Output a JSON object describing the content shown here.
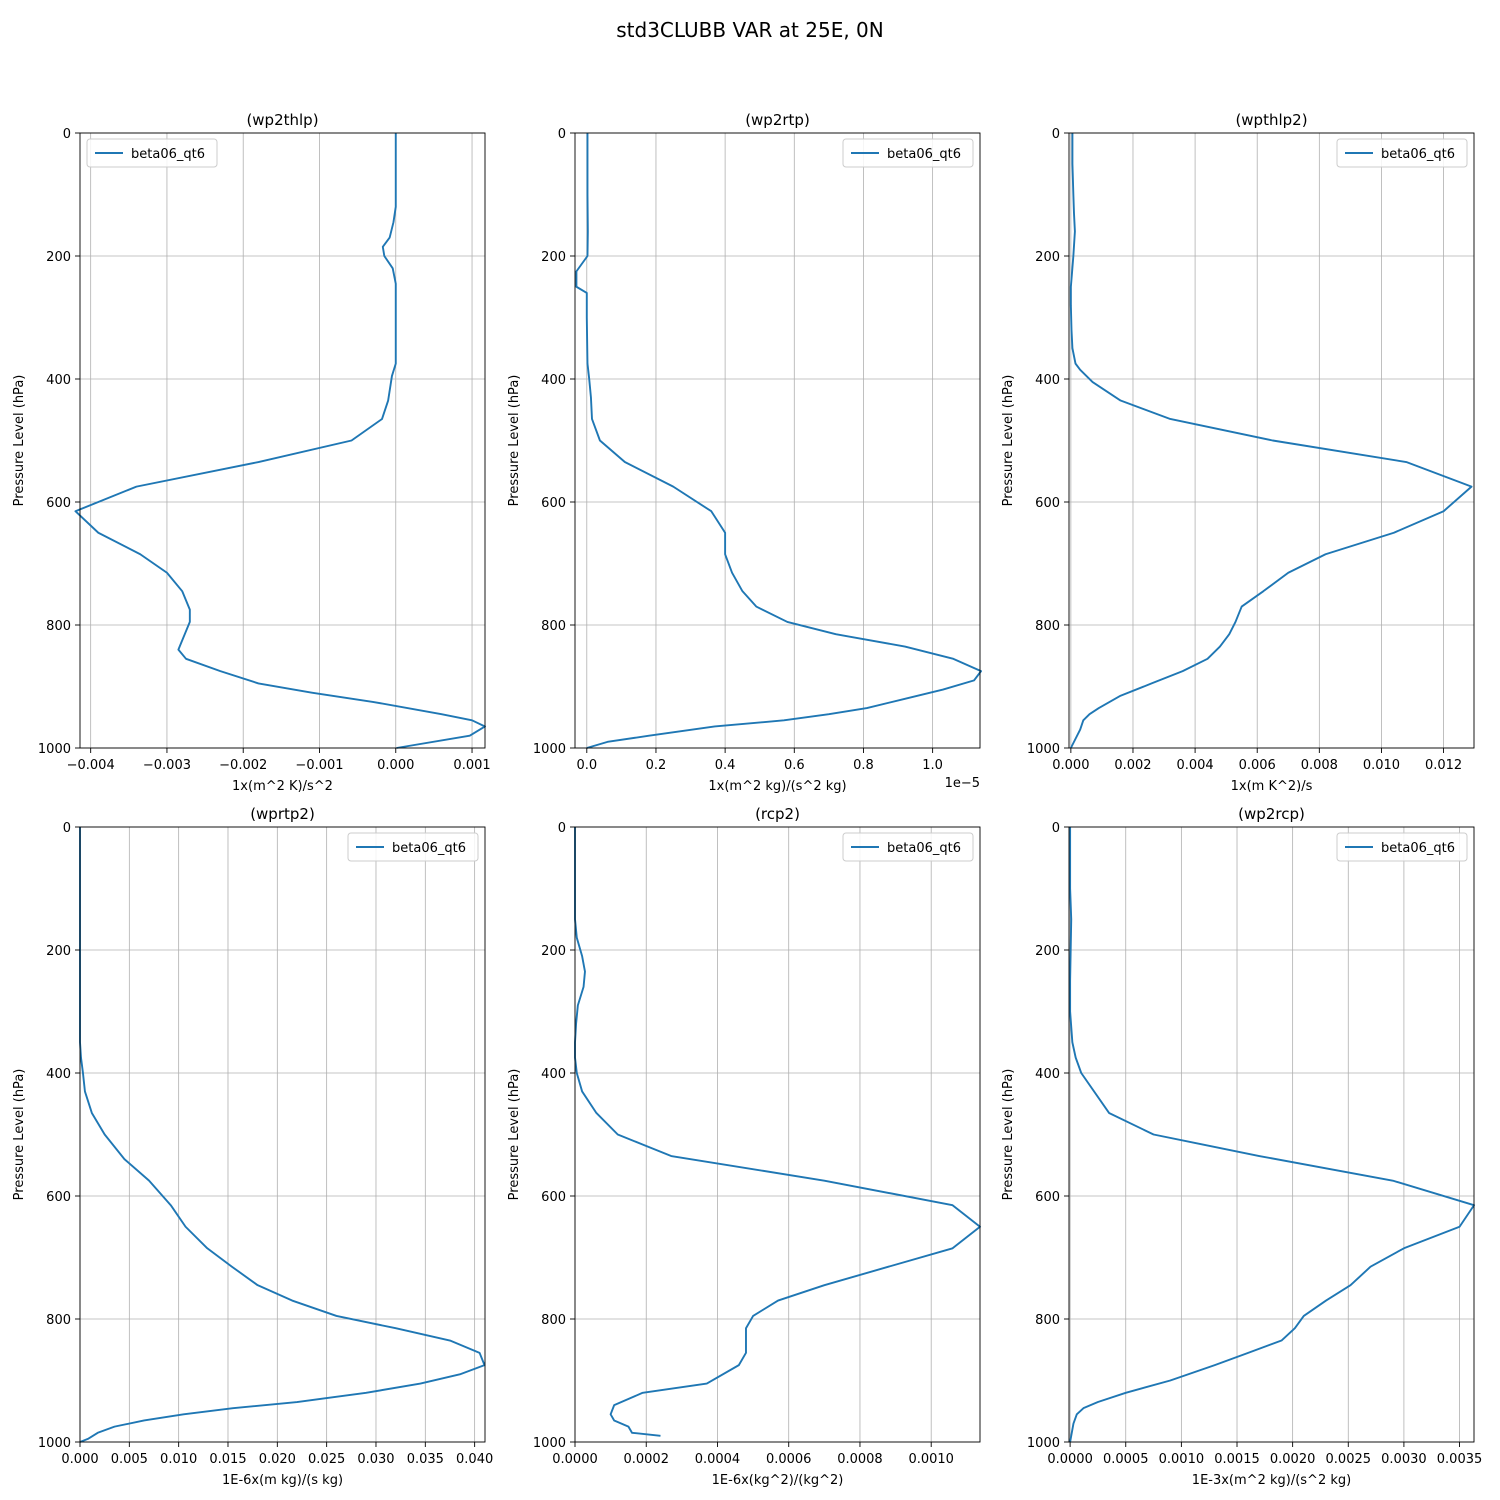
{
  "figure": {
    "title": "std3CLUBB VAR at 25E, 0N"
  },
  "chart_data": [
    {
      "type": "line",
      "title": "(wp2thlp)",
      "xlabel": "1x(m^2 K)/s^2",
      "ylabel": "Pressure Level (hPa)",
      "xlim": [
        -0.00414,
        0.00117
      ],
      "ylim": [
        1000,
        0
      ],
      "xticks": [
        -0.004,
        -0.003,
        -0.002,
        -0.001,
        0.0,
        0.001
      ],
      "xtick_labels": [
        "−0.004",
        "−0.003",
        "−0.002",
        "−0.001",
        "0.000",
        "0.001"
      ],
      "yticks": [
        0,
        200,
        400,
        600,
        800,
        1000
      ],
      "ytick_labels": [
        "0",
        "200",
        "400",
        "600",
        "800",
        "1000"
      ],
      "offset_text": "",
      "grid": true,
      "legend": {
        "position": "upper-left",
        "entries": [
          "beta06_qt6"
        ]
      },
      "series": [
        {
          "name": "beta06_qt6",
          "color": "#1f77b4",
          "x": [
            0.0,
            0.0,
            0.0,
            -3e-05,
            -8e-05,
            -0.00017,
            -0.00015,
            -4e-05,
            0.0,
            0.0,
            0.0,
            0.0,
            -5e-05,
            -0.0001,
            -0.00018,
            -0.00058,
            -0.0018,
            -0.0034,
            -0.0042,
            -0.0039,
            -0.00335,
            -0.003,
            -0.0028,
            -0.0027,
            -0.0027,
            -0.0028,
            -0.00285,
            -0.00275,
            -0.0023,
            -0.0018,
            -0.0011,
            -0.0003,
            0.0006,
            0.001,
            0.00117,
            0.00097,
            1e-05
          ],
          "y": [
            0,
            50,
            120,
            145,
            170,
            185,
            200,
            220,
            245,
            280,
            320,
            375,
            395,
            435,
            465,
            500,
            535,
            575,
            615,
            650,
            685,
            715,
            745,
            775,
            795,
            825,
            840,
            855,
            875,
            895,
            910,
            925,
            945,
            955,
            965,
            980,
            1000
          ]
        }
      ]
    },
    {
      "type": "line",
      "title": "(wp2rtp)",
      "xlabel": "1x(m^2 kg)/(s^2 kg)",
      "ylabel": "Pressure Level (hPa)",
      "xlim": [
        -3.41e-07,
        1.137e-05
      ],
      "ylim": [
        1000,
        0
      ],
      "xticks": [
        0.0,
        2e-06,
        4e-06,
        6e-06,
        8e-06,
        1e-05
      ],
      "xtick_labels": [
        "0.0",
        "0.2",
        "0.4",
        "0.6",
        "0.8",
        "1.0"
      ],
      "yticks": [
        0,
        200,
        400,
        600,
        800,
        1000
      ],
      "ytick_labels": [
        "0",
        "200",
        "400",
        "600",
        "800",
        "1000"
      ],
      "offset_text": "1e−5",
      "grid": true,
      "legend": {
        "position": "upper-right",
        "entries": [
          "beta06_qt6"
        ]
      },
      "series": [
        {
          "name": "beta06_qt6",
          "color": "#1f77b4",
          "x": [
            2e-08,
            2e-08,
            3e-08,
            2e-08,
            -3e-07,
            -3e-07,
            0.0,
            0.0,
            0.0,
            2e-08,
            7e-08,
            1.2e-07,
            1.5e-07,
            3.8e-07,
            1.1e-06,
            2.5e-06,
            3.6e-06,
            4e-06,
            4e-06,
            4.2e-06,
            4.5e-06,
            4.9e-06,
            5.8e-06,
            7.2e-06,
            9.2e-06,
            1.06e-05,
            1.14e-05,
            1.12e-05,
            1.03e-05,
            9.2e-06,
            8.1e-06,
            7e-06,
            5.7e-06,
            3.7e-06,
            1.8e-06,
            6e-07,
            0.0
          ],
          "y": [
            0,
            100,
            160,
            200,
            225,
            250,
            260,
            280,
            300,
            375,
            400,
            430,
            465,
            500,
            535,
            575,
            615,
            650,
            685,
            715,
            745,
            770,
            795,
            815,
            835,
            855,
            875,
            890,
            905,
            920,
            935,
            945,
            955,
            965,
            980,
            990,
            1000
          ]
        }
      ]
    },
    {
      "type": "line",
      "title": "(wpthlp2)",
      "xlabel": "1x(m K^2)/s",
      "ylabel": "Pressure Level (hPa)",
      "xlim": [
        -6e-05,
        0.01298
      ],
      "ylim": [
        1000,
        0
      ],
      "xticks": [
        0.0,
        0.002,
        0.004,
        0.006,
        0.008,
        0.01,
        0.012
      ],
      "xtick_labels": [
        "0.000",
        "0.002",
        "0.004",
        "0.006",
        "0.008",
        "0.010",
        "0.012"
      ],
      "yticks": [
        0,
        200,
        400,
        600,
        800,
        1000
      ],
      "ytick_labels": [
        "0",
        "200",
        "400",
        "600",
        "800",
        "1000"
      ],
      "offset_text": "",
      "grid": true,
      "legend": {
        "position": "upper-right",
        "entries": [
          "beta06_qt6"
        ]
      },
      "series": [
        {
          "name": "beta06_qt6",
          "color": "#1f77b4",
          "x": [
            5e-05,
            5e-05,
            8e-05,
            0.0001,
            0.00013,
            8e-05,
            4e-05,
            0.0,
            0.0,
            2e-05,
            5e-05,
            0.00015,
            0.0003,
            0.0007,
            0.0016,
            0.0032,
            0.0065,
            0.0108,
            0.0129,
            0.012,
            0.0104,
            0.0082,
            0.007,
            0.0062,
            0.0055,
            0.0053,
            0.0051,
            0.0048,
            0.0044,
            0.0036,
            0.0026,
            0.0016,
            0.0009,
            0.0006,
            0.0004,
            0.0003,
            0.0
          ],
          "y": [
            0,
            50,
            100,
            130,
            160,
            200,
            225,
            250,
            280,
            320,
            350,
            375,
            385,
            405,
            435,
            465,
            500,
            535,
            575,
            615,
            650,
            685,
            715,
            745,
            770,
            795,
            815,
            835,
            855,
            875,
            895,
            915,
            935,
            945,
            955,
            970,
            1000
          ]
        }
      ]
    },
    {
      "type": "line",
      "title": "(wprtp2)",
      "xlabel": "1E-6x(m kg)/(s kg)",
      "ylabel": "Pressure Level (hPa)",
      "xlim": [
        0.0,
        0.04105
      ],
      "ylim": [
        1000,
        0
      ],
      "xticks": [
        0.0,
        0.005,
        0.01,
        0.015,
        0.02,
        0.025,
        0.03,
        0.035,
        0.04
      ],
      "xtick_labels": [
        "0.000",
        "0.005",
        "0.010",
        "0.015",
        "0.020",
        "0.025",
        "0.030",
        "0.035",
        "0.040"
      ],
      "yticks": [
        0,
        200,
        400,
        600,
        800,
        1000
      ],
      "ytick_labels": [
        "0",
        "200",
        "400",
        "600",
        "800",
        "1000"
      ],
      "offset_text": "",
      "grid": true,
      "legend": {
        "position": "upper-right",
        "entries": [
          "beta06_qt6"
        ]
      },
      "series": [
        {
          "name": "beta06_qt6",
          "color": "#1f77b4",
          "x": [
            0.0,
            0.0,
            0.0,
            0.0,
            0.0,
            0.0001,
            0.0003,
            0.0005,
            0.0012,
            0.0025,
            0.0045,
            0.007,
            0.0092,
            0.0107,
            0.0129,
            0.0154,
            0.018,
            0.0215,
            0.026,
            0.032,
            0.0375,
            0.0405,
            0.041,
            0.0385,
            0.0345,
            0.029,
            0.022,
            0.0155,
            0.0105,
            0.0065,
            0.0035,
            0.0018,
            0.0008,
            0.0
          ],
          "y": [
            0,
            100,
            200,
            300,
            350,
            375,
            400,
            430,
            465,
            500,
            540,
            575,
            615,
            650,
            685,
            715,
            745,
            770,
            795,
            815,
            835,
            855,
            875,
            890,
            905,
            920,
            935,
            945,
            955,
            965,
            975,
            985,
            995,
            1000
          ]
        }
      ]
    },
    {
      "type": "line",
      "title": "(rcp2)",
      "xlabel": "1E-6x(kg^2)/(kg^2)",
      "ylabel": "Pressure Level (hPa)",
      "xlim": [
        0.0,
        0.001137
      ],
      "ylim": [
        1000,
        0
      ],
      "xticks": [
        0.0,
        0.0002,
        0.0004,
        0.0006,
        0.0008,
        0.001
      ],
      "xtick_labels": [
        "0.0000",
        "0.0002",
        "0.0004",
        "0.0006",
        "0.0008",
        "0.0010"
      ],
      "yticks": [
        0,
        200,
        400,
        600,
        800,
        1000
      ],
      "ytick_labels": [
        "0",
        "200",
        "400",
        "600",
        "800",
        "1000"
      ],
      "offset_text": "",
      "grid": true,
      "legend": {
        "position": "upper-right",
        "entries": [
          "beta06_qt6"
        ]
      },
      "series": [
        {
          "name": "beta06_qt6",
          "color": "#1f77b4",
          "x": [
            0.0,
            0.0,
            0.0,
            5e-06,
            2e-05,
            2.8e-05,
            2.4e-05,
            8e-06,
            3e-06,
            0.0,
            0.0,
            5e-06,
            2e-05,
            6e-05,
            0.00012,
            0.00027,
            0.0007,
            0.00106,
            0.001137,
            0.00106,
            0.00088,
            0.0007,
            0.00057,
            0.0005,
            0.00048,
            0.00048,
            0.00048,
            0.00046,
            0.00037,
            0.00019,
            0.00011,
            0.0001,
            0.00011,
            0.00015,
            0.00016,
            0.00024
          ],
          "y": [
            0,
            100,
            150,
            180,
            210,
            235,
            260,
            290,
            320,
            350,
            375,
            400,
            430,
            465,
            500,
            535,
            575,
            615,
            650,
            685,
            715,
            745,
            770,
            795,
            815,
            835,
            855,
            875,
            905,
            920,
            940,
            955,
            965,
            975,
            985,
            990
          ]
        }
      ]
    },
    {
      "type": "line",
      "title": "(wp2rcp)",
      "xlabel": "1E-3x(m^2 kg)/(s^2 kg)",
      "ylabel": "Pressure Level (hPa)",
      "xlim": [
        -1e-05,
        0.00363
      ],
      "ylim": [
        1000,
        0
      ],
      "xticks": [
        0.0,
        0.0005,
        0.001,
        0.0015,
        0.002,
        0.0025,
        0.003,
        0.0035
      ],
      "xtick_labels": [
        "0.0000",
        "0.0005",
        "0.0010",
        "0.0015",
        "0.0020",
        "0.0025",
        "0.0030",
        "0.0035"
      ],
      "yticks": [
        0,
        200,
        400,
        600,
        800,
        1000
      ],
      "ytick_labels": [
        "0",
        "200",
        "400",
        "600",
        "800",
        "1000"
      ],
      "offset_text": "",
      "grid": true,
      "legend": {
        "position": "upper-right",
        "entries": [
          "beta06_qt6"
        ]
      },
      "series": [
        {
          "name": "beta06_qt6",
          "color": "#1f77b4",
          "x": [
            0.0,
            0.0,
            1e-05,
            5e-06,
            0.0,
            0.0,
            2e-05,
            5e-05,
            0.0001,
            0.00035,
            0.00075,
            0.0017,
            0.0029,
            0.00363,
            0.0035,
            0.003,
            0.0027,
            0.00252,
            0.0023,
            0.0021,
            0.00202,
            0.0019,
            0.0016,
            0.0013,
            0.0009,
            0.0005,
            0.00025,
            0.00012,
            6e-05,
            3e-05,
            0.0
          ],
          "y": [
            0,
            100,
            150,
            200,
            250,
            300,
            350,
            375,
            400,
            465,
            500,
            535,
            575,
            615,
            650,
            685,
            715,
            745,
            770,
            795,
            815,
            835,
            855,
            875,
            900,
            920,
            935,
            945,
            955,
            970,
            1000
          ]
        }
      ]
    }
  ]
}
